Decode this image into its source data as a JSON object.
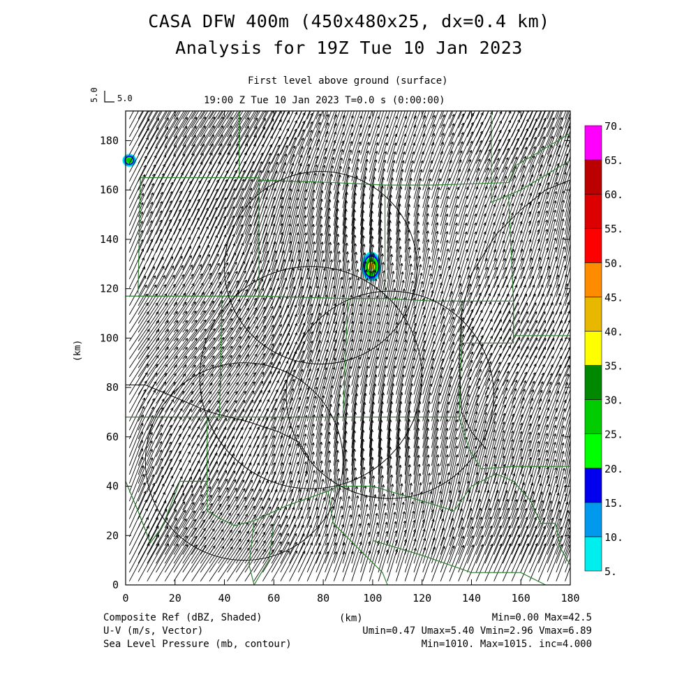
{
  "chart_data": {
    "type": "heatmap",
    "title": "CASA DFW 400m (450x480x25, dx=0.4 km)",
    "title2": "Analysis for 19Z Tue 10 Jan 2023",
    "subtitle": "First level above ground (surface)",
    "time_label": "19:00 Z Tue 10 Jan 2023    T=0.0 s (0:00:00)",
    "reference_vector_label": "5.0",
    "reference_vector_label_vertical": "5.0",
    "xlabel": "(km)",
    "ylabel": "(km)",
    "xlim": [
      0,
      180
    ],
    "ylim": [
      0,
      192
    ],
    "x_ticks": [
      0,
      20,
      40,
      60,
      80,
      100,
      120,
      140,
      160,
      180
    ],
    "y_ticks": [
      0,
      20,
      40,
      60,
      80,
      100,
      120,
      140,
      160,
      180
    ],
    "colorbar": {
      "labels": [
        "70.",
        "65.",
        "60.",
        "55.",
        "50.",
        "45.",
        "40.",
        "35.",
        "30.",
        "25.",
        "20.",
        "15.",
        "10.",
        "5."
      ],
      "colors_low_to_high": [
        "#00eeee",
        "#0099ee",
        "#0000ee",
        "#00ff00",
        "#00cc00",
        "#008800",
        "#ffff00",
        "#e8b800",
        "#ff8c00",
        "#ff0000",
        "#dd0000",
        "#bb0000",
        "#ff00ff"
      ],
      "boundaries": [
        5,
        10,
        15,
        20,
        25,
        30,
        35,
        40,
        45,
        50,
        55,
        60,
        65,
        70
      ]
    },
    "reflectivity_features": [
      {
        "x_km": 1.5,
        "y_km": 172,
        "max_dbz": 27
      },
      {
        "x_km": 99.5,
        "y_km": 129,
        "max_dbz": 42.5
      }
    ],
    "radar_rings": [
      {
        "center_km": [
          79,
          128.5
        ],
        "radius_km": 39
      },
      {
        "center_km": [
          75,
          84
        ],
        "radius_km": 45
      },
      {
        "center_km": [
          107,
          77
        ],
        "radius_km": 42
      },
      {
        "center_km": [
          48,
          50
        ],
        "radius_km": 40
      }
    ],
    "wind_field": {
      "u_typical": 2.8,
      "v_typical": 5.8,
      "reference_speed": 5.0
    },
    "footer": {
      "left": [
        "Composite Ref (dBZ, Shaded)",
        "U-V (m/s, Vector)",
        "Sea Level Pressure (mb, contour)"
      ],
      "center": "(km)",
      "right": [
        "Min=0.00 Max=42.5",
        "Umin=0.47 Umax=5.40 Vmin=2.96 Vmax=6.89",
        "Min=1010. Max=1015. inc=4.000"
      ]
    },
    "colors": {
      "county_lines": "#2e7d32",
      "axes": "#000000",
      "background": "#ffffff"
    }
  }
}
